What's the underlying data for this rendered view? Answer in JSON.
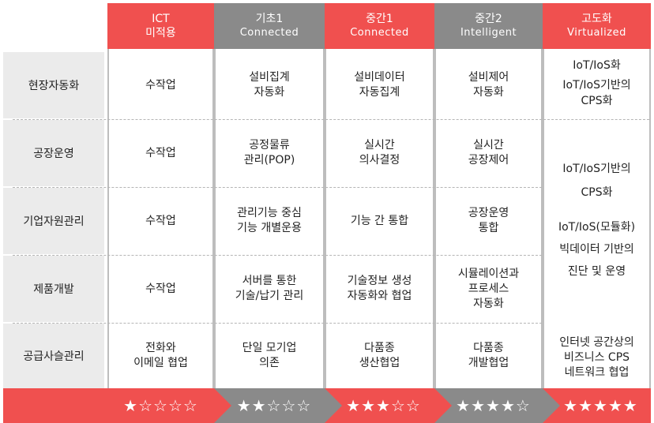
{
  "headers": [
    {
      "title": "ICT",
      "subtitle": "미적용",
      "color": "#f0504f"
    },
    {
      "title": "기초1",
      "subtitle": "Connected",
      "color": "#8a8a8a"
    },
    {
      "title": "중간1",
      "subtitle": "Connected",
      "color": "#f0504f"
    },
    {
      "title": "중간2",
      "subtitle": "Intelligent",
      "color": "#8a8a8a"
    },
    {
      "title": "고도화",
      "subtitle": "Virtualized",
      "color": "#f0504f"
    }
  ],
  "rows": [
    {
      "label": "현장자동화",
      "cells": [
        "수작업",
        "설비집계\n자동화",
        "설비데이터\n자동집계",
        "설비제어\n자동화"
      ]
    },
    {
      "label": "공장운영",
      "cells": [
        "수작업",
        "공정물류\n관리(POP)",
        "실시간\n의사결정",
        "실시간\n공장제어"
      ]
    },
    {
      "label": "기업자원관리",
      "cells": [
        "수작업",
        "관리기능 중심\n기능 개별운용",
        "기능 간 통합",
        "공장운영\n통합"
      ]
    },
    {
      "label": "제품개발",
      "cells": [
        "수작업",
        "서버를 통한\n기술/납기 관리",
        "기술정보 생성\n자동화와 협업",
        "시뮬레이션과\n프로세스\n자동화"
      ]
    },
    {
      "label": "공급사슬관리",
      "cells": [
        "전화와\n이메일 협업",
        "단일 모기업\n의존",
        "다품종\n생산협업",
        "다품종\n개발협업"
      ]
    }
  ],
  "advanced": {
    "top1": "IoT/IoS화",
    "top2": "IoT/IoS기반의\nCPS화",
    "mid1": "IoT/IoS기반의",
    "mid2": "CPS화",
    "mid3": "IoT/IoS(모듈화)",
    "mid4": "빅데이터 기반의",
    "mid5": "진단 및 운영",
    "bottom": "인터넷 공간상의\n비즈니스 CPS\n네트워크 협업"
  },
  "stars": [
    "★☆☆☆☆",
    "★★☆☆☆",
    "★★★☆☆",
    "★★★★☆",
    "★★★★★"
  ]
}
